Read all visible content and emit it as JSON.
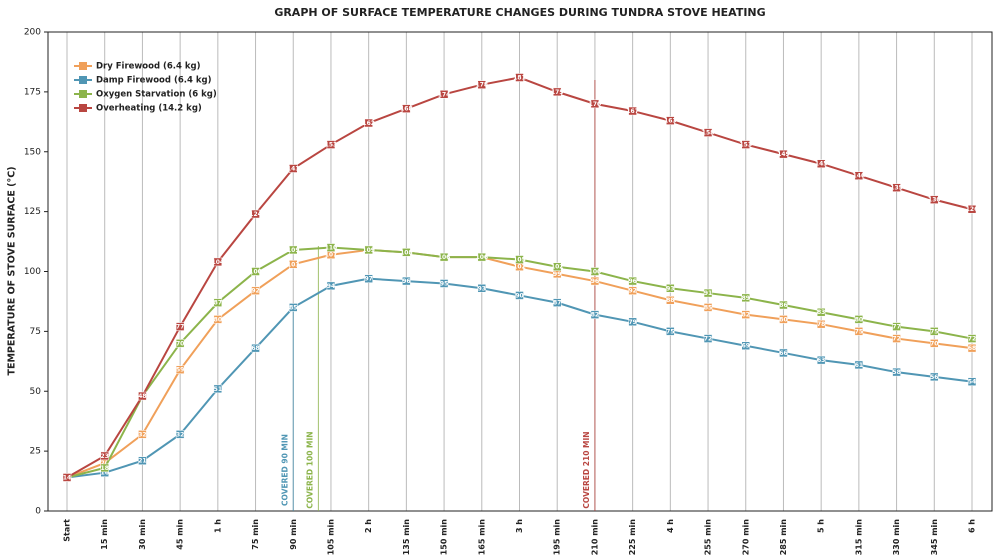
{
  "chart_data": {
    "type": "line",
    "title": "GRAPH OF SURFACE TEMPERATURE CHANGES DURING TUNDRA STOVE HEATING",
    "y_label": "TEMPERATURE OF STOVE SURFACE (°C)",
    "categories": [
      "Start",
      "15 min",
      "30 min",
      "45 min",
      "1 h",
      "75 min",
      "90 min",
      "105 min",
      "2 h",
      "135 min",
      "150 min",
      "165 min",
      "3 h",
      "195 min",
      "210 min",
      "225 min",
      "4 h",
      "255 min",
      "270 min",
      "285 min",
      "5 h",
      "315 min",
      "330 min",
      "345 min",
      "6 h"
    ],
    "series": [
      {
        "name": "Dry Firewood (6.4 kg)",
        "color": "#f0a05a",
        "values": [
          14,
          20,
          32,
          59,
          80,
          92,
          103,
          107,
          109,
          108,
          106,
          106,
          102,
          99,
          96,
          92,
          88,
          85,
          82,
          80,
          78,
          75,
          72,
          70,
          68
        ]
      },
      {
        "name": "Damp Firewood (6.4 kg)",
        "color": "#5096b4",
        "values": [
          14,
          16,
          21,
          32,
          51,
          68,
          85,
          94,
          97,
          96,
          95,
          93,
          90,
          87,
          82,
          79,
          75,
          72,
          69,
          66,
          63,
          61,
          58,
          56,
          54
        ]
      },
      {
        "name": "Oxygen Starvation (6 kg)",
        "color": "#8cb44b",
        "values": [
          14,
          18,
          48,
          70,
          87,
          100,
          109,
          110,
          109,
          108,
          106,
          106,
          105,
          102,
          100,
          96,
          93,
          91,
          89,
          86,
          83,
          80,
          77,
          75,
          72
        ]
      },
      {
        "name": "Overheating (14.2 kg)",
        "color": "#b94641",
        "values": [
          14,
          23,
          48,
          77,
          104,
          124,
          143,
          153,
          162,
          168,
          174,
          178,
          181,
          175,
          170,
          167,
          163,
          158,
          153,
          149,
          145,
          140,
          135,
          130,
          126
        ]
      }
    ],
    "annotations": [
      {
        "text": "COVERED 90 MIN",
        "color": "#5096b4"
      },
      {
        "text": "COVERED 100 MIN",
        "color": "#8cb44b"
      },
      {
        "text": "COVERED 210 MIN",
        "color": "#b94641"
      }
    ],
    "ylim": [
      0,
      200
    ],
    "yticks": [
      0,
      25,
      50,
      75,
      100,
      125,
      150,
      175,
      200
    ],
    "grid": "x",
    "legend": "upper left"
  }
}
